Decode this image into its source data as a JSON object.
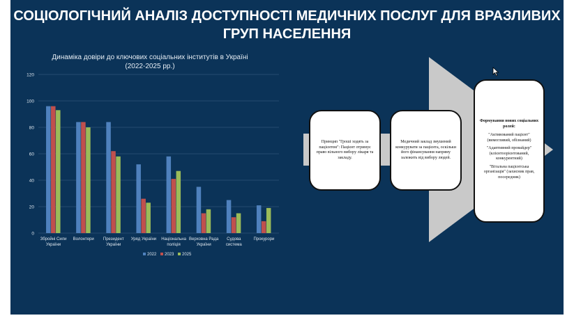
{
  "slide": {
    "title": "СОЦІОЛОГІЧНИЙ АНАЛІЗ ДОСТУПНОСТІ МЕДИЧНИХ ПОСЛУГ ДЛЯ ВРАЗЛИВИХ ГРУП НАСЕЛЕННЯ"
  },
  "chart_data": {
    "type": "bar",
    "title_line1": "Динаміка довіри до ключових соціальних інститутів в Україні",
    "title_line2": "(2022-2025 рр.)",
    "categories": [
      [
        "Збройні Сили",
        "України"
      ],
      [
        "Волонтери"
      ],
      [
        "Президент",
        "України"
      ],
      [
        "Уряд України"
      ],
      [
        "Національна",
        "поліція"
      ],
      [
        "Верховна Рада",
        "України"
      ],
      [
        "Судова",
        "система"
      ],
      [
        "Прокурори"
      ]
    ],
    "series": [
      {
        "name": "2022",
        "color": "#4f81bd",
        "values": [
          96,
          84,
          84,
          52,
          58,
          35,
          25,
          21
        ]
      },
      {
        "name": "2023",
        "color": "#c0504d",
        "values": [
          96,
          84,
          62,
          26,
          41,
          15,
          12,
          9
        ]
      },
      {
        "name": "2025",
        "color": "#9bbb59",
        "values": [
          93,
          80,
          58,
          23,
          47,
          18,
          15,
          19
        ]
      }
    ],
    "ylim": [
      0,
      120
    ],
    "yticks": [
      0,
      20,
      40,
      60,
      80,
      100,
      120
    ],
    "grid": true,
    "legend": "bottom"
  },
  "diagram": {
    "box1": "Принцип \"Гроші ходять за пацієнтом\": Пацієнт отримує право вільного вибору лікаря та закладу.",
    "box2": "Медичний заклад змушений конкурувати за пацієнта, оскільки його фінансування напряму залежить від вибору людей.",
    "box3": {
      "title": "Формування нових соціальних ролей:",
      "roles": [
        "\"Активований пацієнт\" (вимогливий, обізнаний)",
        "\"Адаптивний провайдер\" (клієнтоорієнтований, конкурентний)",
        "\"Вітальна пацієнтська організація\" (захисник прав, посередник)"
      ]
    }
  }
}
